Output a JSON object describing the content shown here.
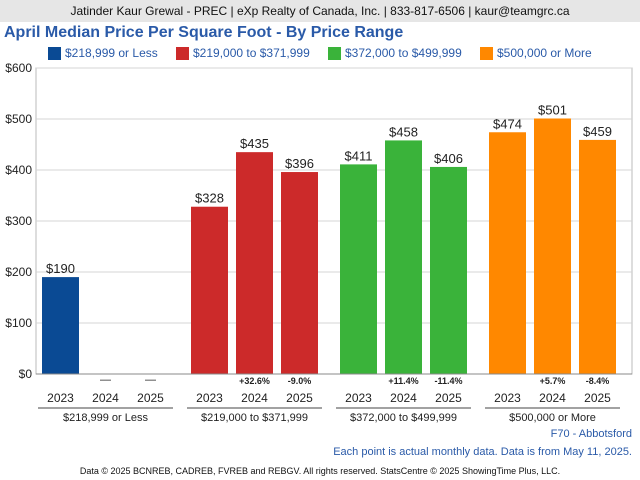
{
  "header": {
    "text": "Jatinder Kaur Grewal - PREC | eXp Realty of Canada, Inc. | 833-817-6506 | kaur@teamgrc.ca"
  },
  "chart_data": {
    "type": "bar",
    "title": "April Median Price Per Square Foot - By Price Range",
    "ylim": [
      0,
      600
    ],
    "yticks": [
      0,
      100,
      200,
      300,
      400,
      500,
      600
    ],
    "ytick_labels": [
      "$0",
      "$100",
      "$200",
      "$300",
      "$400",
      "$500",
      "$600"
    ],
    "grid": true,
    "legend_position": "top",
    "groups": [
      {
        "name": "$218,999 or Less",
        "color": "#0a4a94",
        "bars": [
          {
            "year": "2023",
            "value": 190,
            "label": "$190",
            "change": ""
          },
          {
            "year": "2024",
            "value": null,
            "label": "",
            "change": "—"
          },
          {
            "year": "2025",
            "value": null,
            "label": "",
            "change": "—"
          }
        ]
      },
      {
        "name": "$219,000 to $371,999",
        "color": "#cc2a2a",
        "bars": [
          {
            "year": "2023",
            "value": 328,
            "label": "$328",
            "change": ""
          },
          {
            "year": "2024",
            "value": 435,
            "label": "$435",
            "change": "+32.6%"
          },
          {
            "year": "2025",
            "value": 396,
            "label": "$396",
            "change": "-9.0%"
          }
        ]
      },
      {
        "name": "$372,000 to $499,999",
        "color": "#3ab33a",
        "bars": [
          {
            "year": "2023",
            "value": 411,
            "label": "$411",
            "change": ""
          },
          {
            "year": "2024",
            "value": 458,
            "label": "$458",
            "change": "+11.4%"
          },
          {
            "year": "2025",
            "value": 406,
            "label": "$406",
            "change": "-11.4%"
          }
        ]
      },
      {
        "name": "$500,000 or More",
        "color": "#ff8800",
        "bars": [
          {
            "year": "2023",
            "value": 474,
            "label": "$474",
            "change": ""
          },
          {
            "year": "2024",
            "value": 501,
            "label": "$501",
            "change": "+5.7%"
          },
          {
            "year": "2025",
            "value": 459,
            "label": "$459",
            "change": "-8.4%"
          }
        ]
      }
    ]
  },
  "footer": {
    "area": "F70 - Abbotsford",
    "note": "Each point is actual monthly data. Data is from May 11, 2025.",
    "credits": "Data © 2025 BCNREB, CADREB, FVREB and REBGV. All rights reserved. StatsCentre © 2025 ShowingTime Plus, LLC."
  }
}
